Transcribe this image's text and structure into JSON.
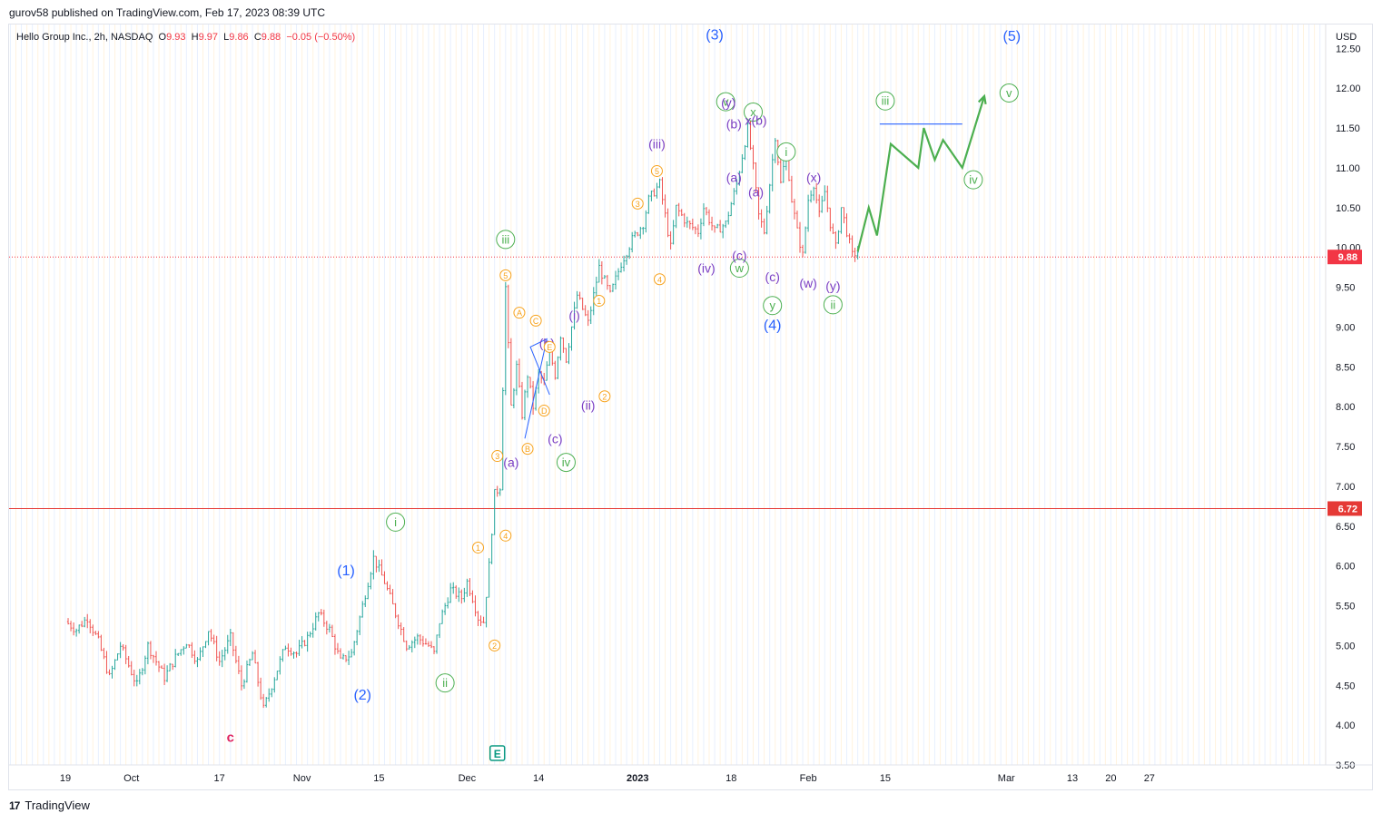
{
  "header": {
    "published_line": "gurov58 published on TradingView.com, Feb 17, 2023 08:39 UTC"
  },
  "symbol": {
    "name": "Hello Group Inc., 2h, NASDAQ",
    "open_label": "O",
    "open": "9.93",
    "high_label": "H",
    "high": "9.97",
    "low_label": "L",
    "low": "9.86",
    "close_label": "C",
    "close": "9.88",
    "change": "−0.05 (−0.50%)"
  },
  "footer": {
    "logo_glyph": "17",
    "brand": "TradingView"
  },
  "colors": {
    "up": "#26a69a",
    "down": "#ef5350",
    "wave_blue": "#2962ff",
    "wave_purple": "#7b3fc4",
    "wave_orange": "#f7a21b",
    "wave_green": "#4caf50",
    "wave_red": "#e0245e",
    "hline": "#e53935",
    "price_dotted": "#f23645"
  },
  "chart_data": {
    "type": "candlestick",
    "currency": "USD",
    "ylim": [
      3.5,
      12.8
    ],
    "y_ticks": [
      "12.50",
      "12.00",
      "11.50",
      "11.00",
      "10.50",
      "10.00",
      "9.50",
      "9.00",
      "8.50",
      "8.00",
      "7.50",
      "7.00",
      "6.50",
      "6.00",
      "5.50",
      "5.00",
      "4.50",
      "4.00",
      "3.50"
    ],
    "x_ticks": [
      {
        "label": "19",
        "d": 0
      },
      {
        "label": "Oct",
        "d": 12
      },
      {
        "label": "17",
        "d": 28
      },
      {
        "label": "Nov",
        "d": 43
      },
      {
        "label": "15",
        "d": 57
      },
      {
        "label": "Dec",
        "d": 73
      },
      {
        "label": "14",
        "d": 86
      },
      {
        "label": "2023",
        "d": 104,
        "bold": true
      },
      {
        "label": "18",
        "d": 121
      },
      {
        "label": "Feb",
        "d": 135
      },
      {
        "label": "15",
        "d": 149
      },
      {
        "label": "Mar",
        "d": 171
      },
      {
        "label": "13",
        "d": 183
      },
      {
        "label": "20",
        "d": 190
      },
      {
        "label": "27",
        "d": 197
      }
    ],
    "price_path": [
      [
        0,
        5.3
      ],
      [
        2,
        5.2
      ],
      [
        4,
        5.35
      ],
      [
        6,
        5.05
      ],
      [
        8,
        4.6
      ],
      [
        10,
        5.0
      ],
      [
        13,
        4.5
      ],
      [
        15,
        5.0
      ],
      [
        18,
        4.6
      ],
      [
        20,
        4.85
      ],
      [
        22,
        5.05
      ],
      [
        24,
        4.8
      ],
      [
        26,
        5.2
      ],
      [
        28,
        4.8
      ],
      [
        30,
        5.1
      ],
      [
        32,
        4.5
      ],
      [
        34,
        4.9
      ],
      [
        36,
        4.2
      ],
      [
        38,
        4.6
      ],
      [
        40,
        5.0
      ],
      [
        42,
        4.9
      ],
      [
        44,
        5.1
      ],
      [
        46,
        5.4
      ],
      [
        48,
        5.2
      ],
      [
        50,
        4.8
      ],
      [
        52,
        4.9
      ],
      [
        54,
        5.5
      ],
      [
        56,
        6.1
      ],
      [
        58,
        5.8
      ],
      [
        60,
        5.4
      ],
      [
        62,
        5.0
      ],
      [
        64,
        5.1
      ],
      [
        66,
        5.0
      ],
      [
        67,
        4.9
      ],
      [
        68,
        5.3
      ],
      [
        70,
        5.7
      ],
      [
        72,
        5.6
      ],
      [
        73,
        5.8
      ],
      [
        74,
        5.6
      ],
      [
        75,
        5.35
      ],
      [
        76,
        5.3
      ],
      [
        77,
        6.0
      ],
      [
        78,
        6.9
      ],
      [
        79,
        7.0
      ],
      [
        80,
        9.5
      ],
      [
        81,
        8.0
      ],
      [
        82,
        8.5
      ],
      [
        83,
        7.9
      ],
      [
        84,
        8.4
      ],
      [
        85,
        8.0
      ],
      [
        86,
        8.4
      ],
      [
        87,
        8.3
      ],
      [
        88,
        8.7
      ],
      [
        89,
        8.4
      ],
      [
        90,
        8.9
      ],
      [
        91,
        8.6
      ],
      [
        93,
        9.4
      ],
      [
        95,
        9.05
      ],
      [
        97,
        9.75
      ],
      [
        99,
        9.4
      ],
      [
        101,
        9.8
      ],
      [
        103,
        10.1
      ],
      [
        105,
        10.3
      ],
      [
        106,
        10.6
      ],
      [
        108,
        10.8
      ],
      [
        110,
        10.0
      ],
      [
        111,
        10.5
      ],
      [
        113,
        10.3
      ],
      [
        115,
        10.2
      ],
      [
        116,
        10.5
      ],
      [
        118,
        10.2
      ],
      [
        120,
        10.3
      ],
      [
        122,
        10.8
      ],
      [
        124,
        11.5
      ],
      [
        125,
        11.0
      ],
      [
        126,
        10.4
      ],
      [
        127,
        10.2
      ],
      [
        129,
        11.4
      ],
      [
        130,
        10.8
      ],
      [
        131,
        11.2
      ],
      [
        132,
        10.6
      ],
      [
        133,
        10.2
      ],
      [
        134,
        9.9
      ],
      [
        135,
        10.6
      ],
      [
        136,
        10.8
      ],
      [
        137,
        10.4
      ],
      [
        138,
        10.7
      ],
      [
        139,
        10.3
      ],
      [
        140,
        10.0
      ],
      [
        141,
        10.5
      ],
      [
        142,
        10.2
      ],
      [
        143,
        9.9
      ],
      [
        144,
        9.95
      ]
    ],
    "projection": [
      [
        144,
        9.95
      ],
      [
        146,
        10.5
      ],
      [
        147.5,
        10.15
      ],
      [
        150,
        11.3
      ],
      [
        155,
        11.0
      ],
      [
        156,
        11.5
      ],
      [
        158,
        11.1
      ],
      [
        159.5,
        11.35
      ],
      [
        163,
        11.0
      ],
      [
        167,
        11.9
      ]
    ],
    "annotations_blue_line": {
      "d1": 148,
      "d2": 163,
      "y": 11.55
    },
    "hlines": [
      {
        "y": 6.72,
        "label": "6.72",
        "style": "solid"
      },
      {
        "y": 9.88,
        "label": "9.88",
        "style": "dotted"
      }
    ],
    "wave_labels": [
      {
        "text": "c",
        "d": 30,
        "y": 3.85,
        "color": "wave_red",
        "size": 15,
        "bold": true
      },
      {
        "text": "(1)",
        "d": 51,
        "y": 5.94,
        "color": "wave_blue",
        "size": 16
      },
      {
        "text": "(2)",
        "d": 54,
        "y": 4.38,
        "color": "wave_blue",
        "size": 16
      },
      {
        "text": "(3)",
        "d": 118,
        "y": 12.67,
        "color": "wave_blue",
        "size": 16
      },
      {
        "text": "(4)",
        "d": 128.5,
        "y": 9.02,
        "color": "wave_blue",
        "size": 16
      },
      {
        "text": "(5)",
        "d": 172,
        "y": 12.65,
        "color": "wave_blue",
        "size": 16
      },
      {
        "text": "i",
        "d": 60,
        "y": 6.55,
        "color": "wave_green",
        "circle": true
      },
      {
        "text": "ii",
        "d": 69,
        "y": 4.53,
        "color": "wave_green",
        "circle": true
      },
      {
        "text": "iii",
        "d": 80,
        "y": 10.1,
        "color": "wave_green",
        "circle": true
      },
      {
        "text": "iv",
        "d": 91,
        "y": 7.3,
        "color": "wave_green",
        "circle": true
      },
      {
        "text": "v",
        "d": 120,
        "y": 11.83,
        "color": "wave_green",
        "circle": true
      },
      {
        "text": "w",
        "d": 122.5,
        "y": 9.74,
        "color": "wave_green",
        "circle": true
      },
      {
        "text": "x",
        "d": 125,
        "y": 11.7,
        "color": "wave_green",
        "circle": true
      },
      {
        "text": "i",
        "d": 131,
        "y": 11.2,
        "color": "wave_green",
        "circle": true
      },
      {
        "text": "y",
        "d": 128.5,
        "y": 9.27,
        "color": "wave_green",
        "circle": true
      },
      {
        "text": "ii",
        "d": 139.5,
        "y": 9.28,
        "color": "wave_green",
        "circle": true
      },
      {
        "text": "iii",
        "d": 149,
        "y": 11.84,
        "color": "wave_green",
        "circle": true
      },
      {
        "text": "iv",
        "d": 165,
        "y": 10.85,
        "color": "wave_green",
        "circle": true
      },
      {
        "text": "v",
        "d": 171.5,
        "y": 11.94,
        "color": "wave_green",
        "circle": true
      },
      {
        "text": "(a)",
        "d": 81,
        "y": 7.3,
        "color": "wave_purple"
      },
      {
        "text": "(b)",
        "d": 87.5,
        "y": 8.8,
        "color": "wave_purple"
      },
      {
        "text": "(c)",
        "d": 89,
        "y": 7.6,
        "color": "wave_purple"
      },
      {
        "text": "(i)",
        "d": 92.5,
        "y": 9.15,
        "color": "wave_purple"
      },
      {
        "text": "(ii)",
        "d": 95,
        "y": 8.02,
        "color": "wave_purple"
      },
      {
        "text": "(iii)",
        "d": 107.5,
        "y": 11.3,
        "color": "wave_purple"
      },
      {
        "text": "(iv)",
        "d": 116.5,
        "y": 9.74,
        "color": "wave_purple"
      },
      {
        "text": "(a)",
        "d": 121.5,
        "y": 10.88,
        "color": "wave_purple"
      },
      {
        "text": "(b)",
        "d": 121.5,
        "y": 11.55,
        "color": "wave_purple"
      },
      {
        "text": "(c)",
        "d": 122.5,
        "y": 9.9,
        "color": "wave_purple"
      },
      {
        "text": "(y)",
        "d": 120.5,
        "y": 11.82,
        "color": "wave_purple"
      },
      {
        "text": "x(b)",
        "d": 125.5,
        "y": 11.6,
        "color": "wave_purple"
      },
      {
        "text": "(a)",
        "d": 125.5,
        "y": 10.7,
        "color": "wave_purple"
      },
      {
        "text": "(c)",
        "d": 128.5,
        "y": 9.63,
        "color": "wave_purple"
      },
      {
        "text": "(x)",
        "d": 136,
        "y": 10.88,
        "color": "wave_purple"
      },
      {
        "text": "(w)",
        "d": 135,
        "y": 9.55,
        "color": "wave_purple"
      },
      {
        "text": "(y)",
        "d": 139.5,
        "y": 9.52,
        "color": "wave_purple"
      },
      {
        "text": "5",
        "d": 80,
        "y": 9.65,
        "color": "wave_orange",
        "circle": true,
        "small": true
      },
      {
        "text": "A",
        "d": 82.5,
        "y": 9.18,
        "color": "wave_orange",
        "circle": true,
        "small": true
      },
      {
        "text": "C",
        "d": 85.5,
        "y": 9.08,
        "color": "wave_orange",
        "circle": true,
        "small": true
      },
      {
        "text": "E",
        "d": 88,
        "y": 8.75,
        "color": "wave_orange",
        "circle": true,
        "small": true
      },
      {
        "text": "D",
        "d": 87,
        "y": 7.95,
        "color": "wave_orange",
        "circle": true,
        "small": true
      },
      {
        "text": "B",
        "d": 84,
        "y": 7.47,
        "color": "wave_orange",
        "circle": true,
        "small": true
      },
      {
        "text": "3",
        "d": 78.5,
        "y": 7.38,
        "color": "wave_orange",
        "circle": true,
        "small": true
      },
      {
        "text": "4",
        "d": 80,
        "y": 6.38,
        "color": "wave_orange",
        "circle": true,
        "small": true
      },
      {
        "text": "1",
        "d": 75,
        "y": 6.23,
        "color": "wave_orange",
        "circle": true,
        "small": true
      },
      {
        "text": "2",
        "d": 78,
        "y": 5.0,
        "color": "wave_orange",
        "circle": true,
        "small": true
      },
      {
        "text": "1",
        "d": 97,
        "y": 9.33,
        "color": "wave_orange",
        "circle": true,
        "small": true
      },
      {
        "text": "2",
        "d": 98,
        "y": 8.13,
        "color": "wave_orange",
        "circle": true,
        "small": true
      },
      {
        "text": "3",
        "d": 104,
        "y": 10.55,
        "color": "wave_orange",
        "circle": true,
        "small": true
      },
      {
        "text": "4",
        "d": 108,
        "y": 9.6,
        "color": "wave_orange",
        "circle": true,
        "small": true
      },
      {
        "text": "5",
        "d": 107.5,
        "y": 10.96,
        "color": "wave_orange",
        "circle": true,
        "small": true
      }
    ],
    "triangle": [
      [
        83.5,
        7.6
      ],
      [
        87.5,
        8.85
      ],
      [
        84.5,
        8.75
      ],
      [
        88,
        8.15
      ]
    ],
    "earnings_marker": {
      "text": "E",
      "d": 78.5
    }
  }
}
